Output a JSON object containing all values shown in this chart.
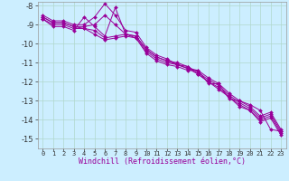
{
  "xlabel": "Windchill (Refroidissement éolien,°C)",
  "background_color": "#cceeff",
  "grid_color": "#b0d8cc",
  "line_color": "#990099",
  "xlim": [
    -0.5,
    23.5
  ],
  "ylim": [
    -15.5,
    -7.8
  ],
  "yticks": [
    -15,
    -14,
    -13,
    -12,
    -11,
    -10,
    -9,
    -8
  ],
  "xticks": [
    0,
    1,
    2,
    3,
    4,
    5,
    6,
    7,
    8,
    9,
    10,
    11,
    12,
    13,
    14,
    15,
    16,
    17,
    18,
    19,
    20,
    21,
    22,
    23
  ],
  "series": [
    [
      -8.5,
      -8.8,
      -8.8,
      -9.0,
      -9.0,
      -8.6,
      -7.9,
      -8.5,
      -9.3,
      -9.4,
      -10.2,
      -10.6,
      -10.8,
      -11.1,
      -11.3,
      -11.4,
      -11.8,
      -12.1,
      -12.6,
      -13.0,
      -13.3,
      -13.8,
      -13.6,
      -14.5
    ],
    [
      -8.6,
      -8.9,
      -8.9,
      -9.1,
      -9.1,
      -9.0,
      -8.5,
      -9.0,
      -9.5,
      -9.6,
      -10.3,
      -10.7,
      -10.9,
      -11.0,
      -11.2,
      -11.5,
      -11.9,
      -12.2,
      -12.7,
      -13.1,
      -13.4,
      -13.9,
      -13.7,
      -14.6
    ],
    [
      -8.6,
      -8.9,
      -8.9,
      -9.1,
      -9.2,
      -9.3,
      -9.7,
      -9.6,
      -9.5,
      -9.6,
      -10.3,
      -10.7,
      -10.9,
      -11.1,
      -11.2,
      -11.6,
      -12.0,
      -12.3,
      -12.8,
      -13.2,
      -13.5,
      -14.0,
      -13.8,
      -14.7
    ],
    [
      -8.7,
      -9.0,
      -9.0,
      -9.2,
      -9.2,
      -9.5,
      -9.8,
      -9.7,
      -9.6,
      -9.7,
      -10.4,
      -10.8,
      -11.0,
      -11.1,
      -11.3,
      -11.6,
      -12.0,
      -12.4,
      -12.8,
      -13.3,
      -13.5,
      -14.1,
      -13.9,
      -14.8
    ],
    [
      -8.7,
      -9.1,
      -9.1,
      -9.3,
      -8.6,
      -9.1,
      -9.6,
      -8.1,
      -9.5,
      -9.7,
      -10.5,
      -10.9,
      -11.1,
      -11.2,
      -11.4,
      -11.4,
      -12.1,
      -12.1,
      -12.9,
      -13.0,
      -13.2,
      -13.5,
      -14.5,
      -14.6
    ]
  ]
}
